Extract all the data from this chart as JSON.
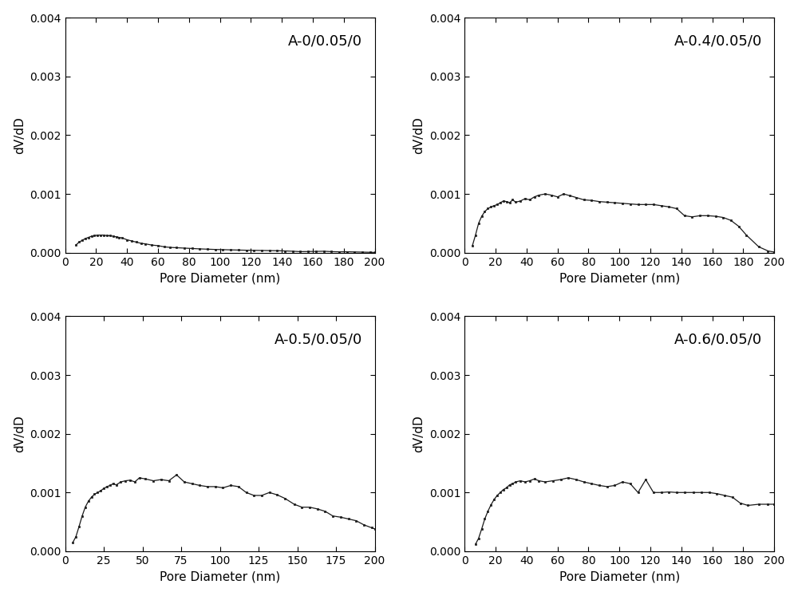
{
  "subplots": [
    {
      "label": "A-0/0.05/0",
      "x": [
        7,
        9,
        11,
        13,
        15,
        17,
        19,
        21,
        23,
        25,
        27,
        29,
        31,
        33,
        35,
        37,
        40,
        43,
        46,
        49,
        52,
        56,
        60,
        64,
        68,
        72,
        77,
        82,
        87,
        92,
        97,
        102,
        107,
        112,
        117,
        122,
        127,
        132,
        137,
        142,
        147,
        152,
        157,
        162,
        167,
        172,
        177,
        182,
        187,
        192,
        197,
        200
      ],
      "y": [
        0.00013,
        0.00018,
        0.00021,
        0.00024,
        0.00026,
        0.00028,
        0.00029,
        0.0003,
        0.0003,
        0.0003,
        0.00029,
        0.00029,
        0.00028,
        0.00027,
        0.00026,
        0.00025,
        0.00022,
        0.0002,
        0.00018,
        0.00016,
        0.00015,
        0.00013,
        0.00012,
        0.0001,
        9e-05,
        8.5e-05,
        7.8e-05,
        7.2e-05,
        6.5e-05,
        6e-05,
        5.5e-05,
        5.2e-05,
        4.8e-05,
        4.5e-05,
        4.2e-05,
        4e-05,
        3.8e-05,
        3.6e-05,
        3.4e-05,
        3e-05,
        2.5e-05,
        1.8e-05,
        2e-05,
        2.2e-05,
        2.5e-05,
        1.8e-05,
        1.5e-05,
        1.6e-05,
        1.3e-05,
        1e-05,
        7e-06,
        5e-06
      ],
      "xlabel_ticks": [
        0,
        20,
        40,
        60,
        80,
        100,
        120,
        140,
        160,
        180,
        200
      ],
      "ylabel_ticks": [
        0.0,
        0.001,
        0.002,
        0.003,
        0.004
      ]
    },
    {
      "label": "A-0.4/0.05/0",
      "x": [
        5,
        7,
        9,
        11,
        13,
        15,
        17,
        19,
        21,
        23,
        25,
        27,
        29,
        31,
        33,
        36,
        39,
        42,
        45,
        48,
        52,
        56,
        60,
        64,
        68,
        72,
        77,
        82,
        87,
        92,
        97,
        102,
        107,
        112,
        117,
        122,
        127,
        132,
        137,
        142,
        147,
        152,
        157,
        162,
        167,
        172,
        177,
        182,
        190,
        196,
        200
      ],
      "y": [
        0.00012,
        0.0003,
        0.0005,
        0.00062,
        0.0007,
        0.00075,
        0.00078,
        0.0008,
        0.00082,
        0.00085,
        0.00088,
        0.00087,
        0.00085,
        0.0009,
        0.00086,
        0.00088,
        0.00092,
        0.0009,
        0.00095,
        0.00098,
        0.001,
        0.00098,
        0.00095,
        0.001,
        0.00097,
        0.00094,
        0.0009,
        0.00089,
        0.00087,
        0.00086,
        0.00085,
        0.00084,
        0.00083,
        0.00082,
        0.00082,
        0.00082,
        0.0008,
        0.00078,
        0.00075,
        0.00063,
        0.00061,
        0.00063,
        0.00063,
        0.00062,
        0.0006,
        0.00055,
        0.00045,
        0.0003,
        0.0001,
        3e-05,
        1e-05
      ],
      "xlabel_ticks": [
        0,
        20,
        40,
        60,
        80,
        100,
        120,
        140,
        160,
        180,
        200
      ],
      "ylabel_ticks": [
        0.0,
        0.001,
        0.002,
        0.003,
        0.004
      ]
    },
    {
      "label": "A-0.5/0.05/0",
      "x": [
        5,
        7,
        9,
        11,
        13,
        15,
        17,
        19,
        21,
        23,
        25,
        27,
        29,
        31,
        33,
        36,
        39,
        42,
        45,
        48,
        52,
        57,
        62,
        67,
        72,
        77,
        82,
        87,
        92,
        97,
        102,
        107,
        112,
        117,
        122,
        127,
        132,
        137,
        142,
        148,
        153,
        158,
        163,
        168,
        173,
        178,
        183,
        188,
        193,
        198,
        200
      ],
      "y": [
        0.00015,
        0.00025,
        0.00042,
        0.0006,
        0.00075,
        0.00085,
        0.00092,
        0.00097,
        0.001,
        0.00103,
        0.00107,
        0.0011,
        0.00112,
        0.00115,
        0.00113,
        0.00118,
        0.0012,
        0.00121,
        0.00118,
        0.00125,
        0.00123,
        0.0012,
        0.00122,
        0.0012,
        0.0013,
        0.00118,
        0.00115,
        0.00112,
        0.0011,
        0.0011,
        0.00108,
        0.00112,
        0.0011,
        0.001,
        0.00095,
        0.00095,
        0.001,
        0.00096,
        0.0009,
        0.0008,
        0.00075,
        0.00075,
        0.00072,
        0.00068,
        0.0006,
        0.00058,
        0.00055,
        0.00052,
        0.00045,
        0.0004,
        0.00038
      ],
      "xlabel_ticks": [
        0,
        25,
        50,
        75,
        100,
        125,
        150,
        175,
        200
      ],
      "ylabel_ticks": [
        0.0,
        0.001,
        0.002,
        0.003,
        0.004
      ]
    },
    {
      "label": "A-0.6/0.05/0",
      "x": [
        7,
        9,
        11,
        13,
        15,
        17,
        19,
        21,
        23,
        25,
        27,
        29,
        31,
        33,
        36,
        39,
        42,
        45,
        48,
        52,
        57,
        62,
        67,
        72,
        77,
        82,
        87,
        92,
        97,
        102,
        107,
        112,
        117,
        122,
        127,
        132,
        137,
        142,
        148,
        153,
        158,
        163,
        168,
        173,
        178,
        183,
        190,
        196,
        200
      ],
      "y": [
        0.00012,
        0.00022,
        0.00038,
        0.00055,
        0.00068,
        0.00079,
        0.00088,
        0.00095,
        0.001,
        0.00105,
        0.00108,
        0.00113,
        0.00115,
        0.00118,
        0.0012,
        0.00118,
        0.0012,
        0.00123,
        0.0012,
        0.00118,
        0.0012,
        0.00122,
        0.00125,
        0.00122,
        0.00118,
        0.00115,
        0.00112,
        0.0011,
        0.00112,
        0.00118,
        0.00115,
        0.001,
        0.00122,
        0.001,
        0.001,
        0.00101,
        0.001,
        0.001,
        0.001,
        0.001,
        0.001,
        0.00098,
        0.00095,
        0.00092,
        0.00082,
        0.00078,
        0.0008,
        0.0008,
        0.0008
      ],
      "xlabel_ticks": [
        0,
        20,
        40,
        60,
        80,
        100,
        120,
        140,
        160,
        180,
        200
      ],
      "ylabel_ticks": [
        0.0,
        0.001,
        0.002,
        0.003,
        0.004
      ]
    }
  ],
  "xlabel": "Pore Diameter (nm)",
  "ylabel": "dV/dD",
  "xlim": [
    0,
    200
  ],
  "ylim": [
    0,
    0.004
  ],
  "line_color": "#1a1a1a",
  "marker": "s",
  "markersize": 1.5,
  "linewidth": 0.9,
  "label_fontsize": 11,
  "tick_fontsize": 10,
  "annotation_fontsize": 13,
  "background_color": "#ffffff",
  "figure_facecolor": "#ffffff"
}
